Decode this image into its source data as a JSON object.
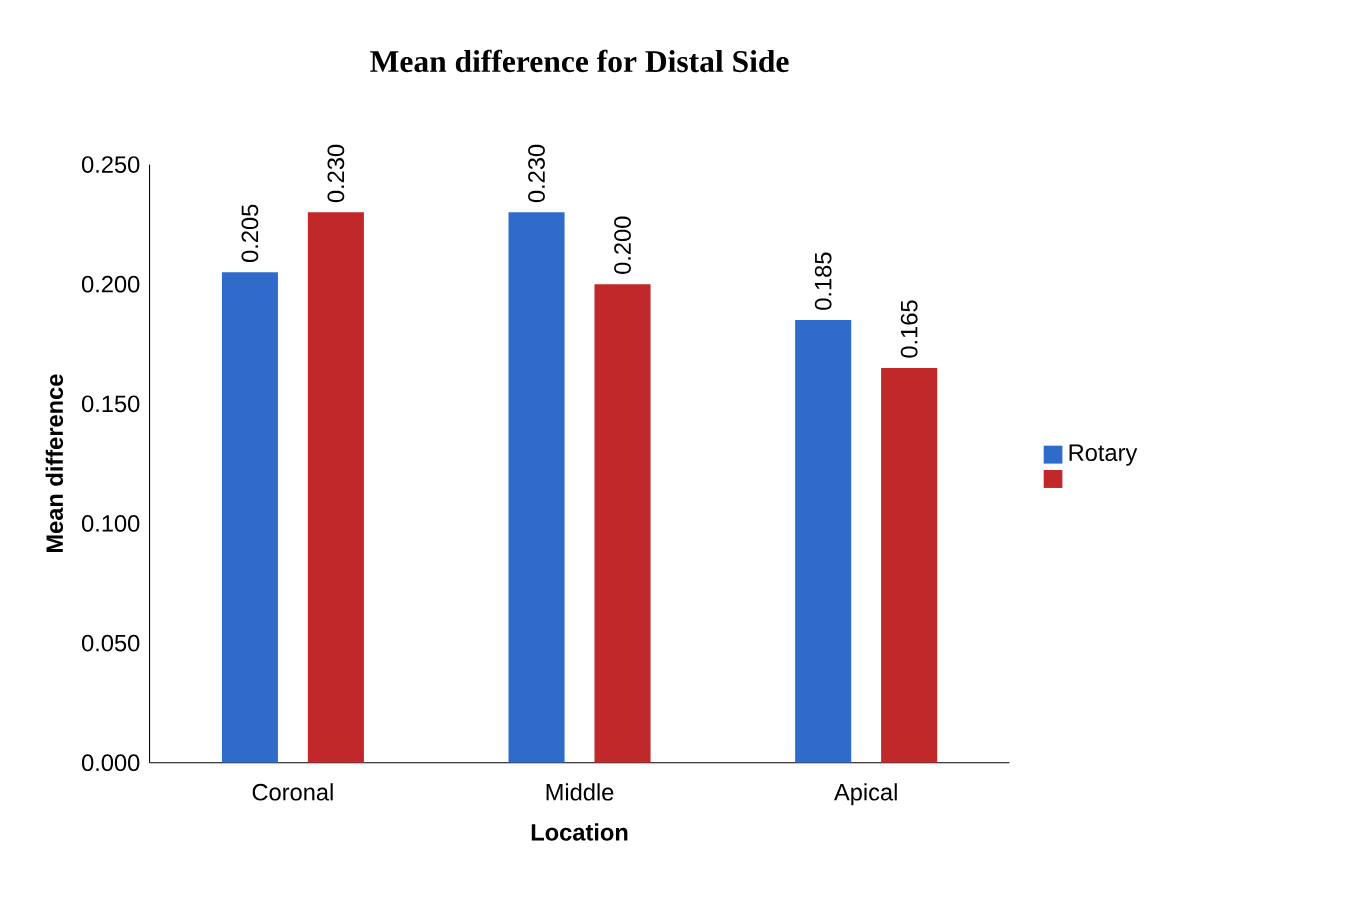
{
  "chart_data": {
    "type": "bar",
    "title": "Mean difference for Distal Side",
    "xlabel": "Location",
    "ylabel": "Mean difference",
    "categories": [
      "Coronal",
      "Middle",
      "Apical"
    ],
    "series": [
      {
        "name": "Rotary",
        "color": "#2f6bc8",
        "values": [
          0.205,
          0.23,
          0.185
        ],
        "value_labels": [
          "0.205",
          "0.230",
          "0.185"
        ]
      },
      {
        "color": "#c0282a",
        "values": [
          0.23,
          0.2,
          0.165
        ],
        "value_labels": [
          "0.230",
          "0.200",
          "0.165"
        ]
      }
    ],
    "ylim": [
      0,
      0.25
    ],
    "yticks": [
      {
        "value": 0,
        "label": "0.000"
      },
      {
        "value": 0.05,
        "label": "0.050"
      },
      {
        "value": 0.1,
        "label": "0.100"
      },
      {
        "value": 0.15,
        "label": "0.150"
      },
      {
        "value": 0.2,
        "label": "0.200"
      },
      {
        "value": 0.25,
        "label": "0.250"
      }
    ],
    "legend": "right",
    "grid": false
  }
}
